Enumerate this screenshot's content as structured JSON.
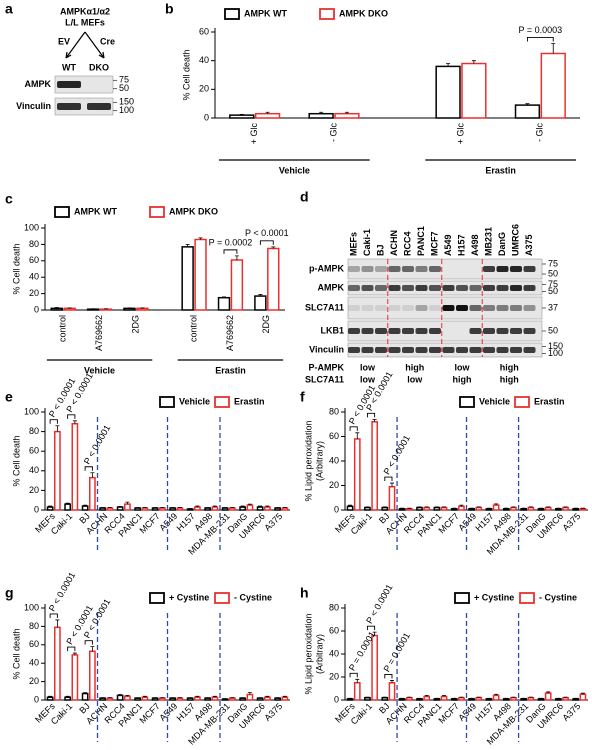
{
  "chart_data": [
    {
      "type": "bar",
      "panel": "b",
      "ylabel": "% Cell death",
      "ylim": [
        0,
        60
      ],
      "yticks": [
        0,
        20,
        40,
        60
      ],
      "groups": [
        {
          "name": "Vehicle",
          "categories": [
            "+ Glc",
            "- Glc"
          ]
        },
        {
          "name": "Erastin",
          "categories": [
            "+ Glc",
            "- Glc"
          ]
        }
      ],
      "series": [
        {
          "name": "AMPK WT",
          "color": "#000000",
          "values": [
            2,
            3,
            36,
            9
          ],
          "errors": [
            0.5,
            1,
            2,
            1
          ]
        },
        {
          "name": "AMPK DKO",
          "color": "#e8312f",
          "values": [
            3,
            3,
            38,
            45
          ],
          "errors": [
            1,
            1,
            2,
            7
          ]
        }
      ],
      "annotations": [
        {
          "label": "P = 0.0003",
          "group": "Erastin",
          "category": "- Glc"
        }
      ]
    },
    {
      "type": "bar",
      "panel": "c",
      "ylabel": "% Cell death",
      "ylim": [
        0,
        100
      ],
      "yticks": [
        0,
        20,
        40,
        60,
        80,
        100
      ],
      "groups": [
        {
          "name": "Vehicle",
          "categories": [
            "control",
            "A769662",
            "2DG"
          ]
        },
        {
          "name": "Erastin",
          "categories": [
            "control",
            "A769662",
            "2DG"
          ]
        }
      ],
      "series": [
        {
          "name": "AMPK WT",
          "color": "#000000",
          "values": [
            2,
            1,
            2,
            77,
            15,
            17
          ],
          "errors": [
            1,
            0.5,
            0.5,
            3,
            1,
            2
          ]
        },
        {
          "name": "AMPK DKO",
          "color": "#e8312f",
          "values": [
            2,
            1,
            2,
            86,
            61,
            75
          ],
          "errors": [
            0.5,
            0.5,
            0.5,
            2,
            5,
            2
          ]
        }
      ],
      "annotations": [
        {
          "label": "P = 0.0002",
          "group": "Erastin",
          "category": "A769662"
        },
        {
          "label": "P < 0.0001",
          "group": "Erastin",
          "category": "2DG"
        }
      ]
    },
    {
      "type": "bar",
      "panel": "e",
      "ylabel": "% Cell death",
      "ylim": [
        0,
        100
      ],
      "yticks": [
        0,
        20,
        40,
        60,
        80,
        100
      ],
      "categories": [
        "MEFs",
        "Caki-1",
        "BJ",
        "ACHN",
        "RCC4",
        "PANC1",
        "MCF7",
        "A549",
        "H157",
        "A498",
        "MDA-MB-231",
        "DanG",
        "UMRC6",
        "A375"
      ],
      "series": [
        {
          "name": "Vehicle",
          "color": "#000000",
          "values": [
            3,
            6,
            4,
            2,
            3,
            2,
            2,
            2,
            1,
            2,
            2,
            3,
            3,
            2
          ],
          "errors": [
            1,
            1,
            1,
            0.5,
            0.5,
            0.5,
            0.5,
            0.5,
            0.5,
            0.5,
            0.5,
            1,
            1,
            0.5
          ]
        },
        {
          "name": "Erastin",
          "color": "#e8312f",
          "values": [
            80,
            88,
            33,
            2,
            6,
            2,
            2,
            2,
            3,
            3,
            2,
            5,
            3,
            2
          ],
          "errors": [
            6,
            3,
            5,
            0.5,
            2,
            0.5,
            0.5,
            0.5,
            1,
            1,
            0.5,
            1,
            1,
            0.5
          ]
        }
      ],
      "annotations": [
        {
          "label": "P < 0.0001",
          "category": "MEFs"
        },
        {
          "label": "P < 0.0001",
          "category": "Caki-1"
        },
        {
          "label": "P < 0.0001",
          "category": "BJ"
        }
      ]
    },
    {
      "type": "bar",
      "panel": "f",
      "ylabel": [
        "% Lipid peroxidation",
        "(Arbitrary)"
      ],
      "ylim": [
        0,
        80
      ],
      "yticks": [
        0,
        20,
        40,
        60,
        80
      ],
      "categories": [
        "MEFs",
        "Caki-1",
        "BJ",
        "ACHN",
        "RCC4",
        "PANC1",
        "MCF7",
        "A549",
        "H157",
        "A498",
        "MDA-MB-231",
        "DanG",
        "UMRC6",
        "A375"
      ],
      "series": [
        {
          "name": "Vehicle",
          "color": "#000000",
          "values": [
            3,
            2,
            2,
            1,
            2,
            2,
            1,
            1,
            1,
            1,
            1,
            1,
            1,
            1
          ],
          "errors": [
            1,
            0.5,
            0.5,
            0.5,
            0.5,
            0.5,
            0.5,
            0.5,
            0.5,
            0.5,
            0.5,
            0.5,
            0.5,
            0.5
          ]
        },
        {
          "name": "Erastin",
          "color": "#e8312f",
          "values": [
            58,
            72,
            19,
            1,
            2,
            2,
            3,
            2,
            4,
            2,
            2,
            2,
            2,
            1
          ],
          "errors": [
            5,
            2,
            3,
            0.5,
            0.5,
            0.5,
            1,
            0.5,
            1,
            0.5,
            0.5,
            0.5,
            0.5,
            0.5
          ]
        }
      ],
      "annotations": [
        {
          "label": "P < 0.0001",
          "category": "MEFs"
        },
        {
          "label": "P < 0.0001",
          "category": "Caki-1"
        },
        {
          "label": "P < 0.0001",
          "category": "BJ"
        }
      ]
    },
    {
      "type": "bar",
      "panel": "g",
      "ylabel": "% Cell death",
      "ylim": [
        0,
        100
      ],
      "yticks": [
        0,
        20,
        40,
        60,
        80,
        100
      ],
      "categories": [
        "MEFs",
        "Caki-1",
        "BJ",
        "ACHN",
        "RCC4",
        "PANC1",
        "MCF7",
        "A549",
        "H157",
        "A498",
        "MDA-MB-231",
        "DanG",
        "UMRC6",
        "A375"
      ],
      "series": [
        {
          "name": "+ Cystine",
          "color": "#000000",
          "values": [
            3,
            3,
            7,
            2,
            5,
            2,
            2,
            2,
            2,
            2,
            1,
            2,
            2,
            2
          ],
          "errors": [
            1,
            1,
            1,
            0.5,
            1,
            0.5,
            0.5,
            0.5,
            0.5,
            0.5,
            0.5,
            0.5,
            0.5,
            0.5
          ]
        },
        {
          "name": "- Cystine",
          "color": "#e8312f",
          "values": [
            79,
            49,
            53,
            2,
            4,
            3,
            2,
            2,
            3,
            3,
            2,
            6,
            3,
            3
          ],
          "errors": [
            8,
            2,
            5,
            0.5,
            1,
            1,
            0.5,
            0.5,
            1,
            1,
            0.5,
            2,
            1,
            1
          ]
        }
      ],
      "annotations": [
        {
          "label": "P < 0.0001",
          "category": "MEFs"
        },
        {
          "label": "P < 0.0001",
          "category": "Caki-1"
        },
        {
          "label": "P < 0.0001",
          "category": "BJ"
        }
      ]
    },
    {
      "type": "bar",
      "panel": "h",
      "ylabel": [
        "% Lipid peroxidation",
        "(Arbitrary)"
      ],
      "ylim": [
        0,
        80
      ],
      "yticks": [
        0,
        20,
        40,
        60,
        80
      ],
      "categories": [
        "MEFs",
        "Caki-1",
        "BJ",
        "ACHN",
        "RCC4",
        "PANC1",
        "MCF7",
        "A549",
        "H157",
        "A498",
        "MDA-MB-231",
        "DanG",
        "UMRC6",
        "A375"
      ],
      "series": [
        {
          "name": "+ Cystine",
          "color": "#000000",
          "values": [
            1,
            2,
            2,
            1,
            1,
            1,
            1,
            1,
            1,
            1,
            1,
            1,
            1,
            1
          ],
          "errors": [
            0.5,
            0.5,
            0.5,
            0.5,
            0.5,
            0.5,
            0.5,
            0.5,
            0.5,
            0.5,
            0.5,
            0.5,
            0.5,
            0.5
          ]
        },
        {
          "name": "- Cystine",
          "color": "#e8312f",
          "values": [
            15,
            56,
            15,
            2,
            3,
            3,
            2,
            2,
            4,
            2,
            2,
            6,
            2,
            5
          ],
          "errors": [
            3,
            3,
            2,
            0.5,
            1,
            1,
            0.5,
            0.5,
            1,
            0.5,
            0.5,
            1,
            0.5,
            1
          ]
        }
      ],
      "annotations": [
        {
          "label": "P = 0.0001",
          "category": "MEFs"
        },
        {
          "label": "P < 0.0001",
          "category": "Caki-1"
        },
        {
          "label": "P = 0.0001",
          "category": "BJ"
        }
      ]
    }
  ],
  "blots": [
    {
      "panel": "a",
      "header": [
        "AMPKα1/α2",
        "L/L MEFs"
      ],
      "arms": [
        "EV",
        "Cre"
      ],
      "lanes": [
        "WT",
        "DKO"
      ],
      "rows": [
        {
          "name": "AMPK",
          "markers": [
            75,
            50
          ]
        },
        {
          "name": "Vinculin",
          "markers": [
            150,
            100
          ]
        }
      ]
    },
    {
      "panel": "d",
      "lanes": [
        "MEFs",
        "Caki-1",
        "BJ",
        "ACHN",
        "RCC4",
        "PANC1",
        "MCF7",
        "A549",
        "H157",
        "A498",
        "MB231",
        "DanG",
        "UMRC6",
        "A375"
      ],
      "rows": [
        {
          "name": "p-AMPK",
          "markers": [
            75,
            50
          ]
        },
        {
          "name": "AMPK",
          "markers": [
            75,
            50
          ]
        },
        {
          "name": "SLC7A11",
          "markers": [
            37
          ]
        },
        {
          "name": "LKB1",
          "markers": [
            50
          ]
        },
        {
          "name": "Vinculin",
          "markers": [
            150,
            100
          ]
        }
      ],
      "footer": [
        {
          "name": "P-AMPK",
          "labels": [
            "low",
            "high",
            "low",
            "high"
          ]
        },
        {
          "name": "SLC7A11",
          "labels": [
            "low",
            "low",
            "high",
            "high"
          ]
        }
      ]
    }
  ]
}
